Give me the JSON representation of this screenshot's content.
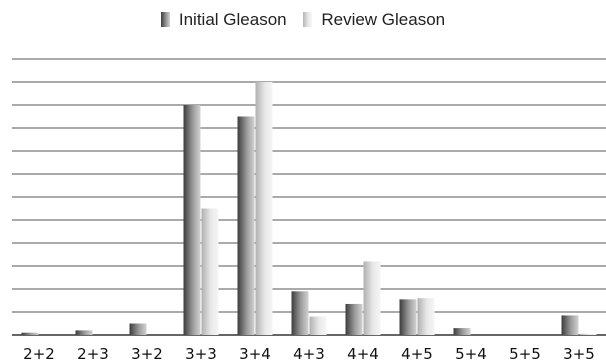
{
  "legend": {
    "initial_label": "Initial Gleason",
    "review_label": "Review Gleason"
  },
  "chart_data": {
    "type": "bar",
    "categories": [
      "2+2",
      "2+3",
      "3+2",
      "3+3",
      "3+4",
      "4+3",
      "4+4",
      "4+5",
      "5+4",
      "5+5",
      "3+5"
    ],
    "series": [
      {
        "name": "Initial Gleason",
        "values": [
          0.1,
          0.2,
          0.5,
          10,
          9.5,
          1.9,
          1.35,
          1.55,
          0.3,
          0,
          0.85
        ]
      },
      {
        "name": "Review Gleason",
        "values": [
          0,
          0,
          0,
          5.5,
          11,
          0.8,
          3.2,
          1.6,
          0,
          0,
          0.05
        ]
      }
    ],
    "ylim": [
      0,
      12
    ],
    "grid": true,
    "legend_position": "top-center",
    "colors": {
      "initial": "#6e6e6e",
      "review": "#d6d6d6",
      "gridline": "#555555",
      "axis": "#333333"
    }
  }
}
